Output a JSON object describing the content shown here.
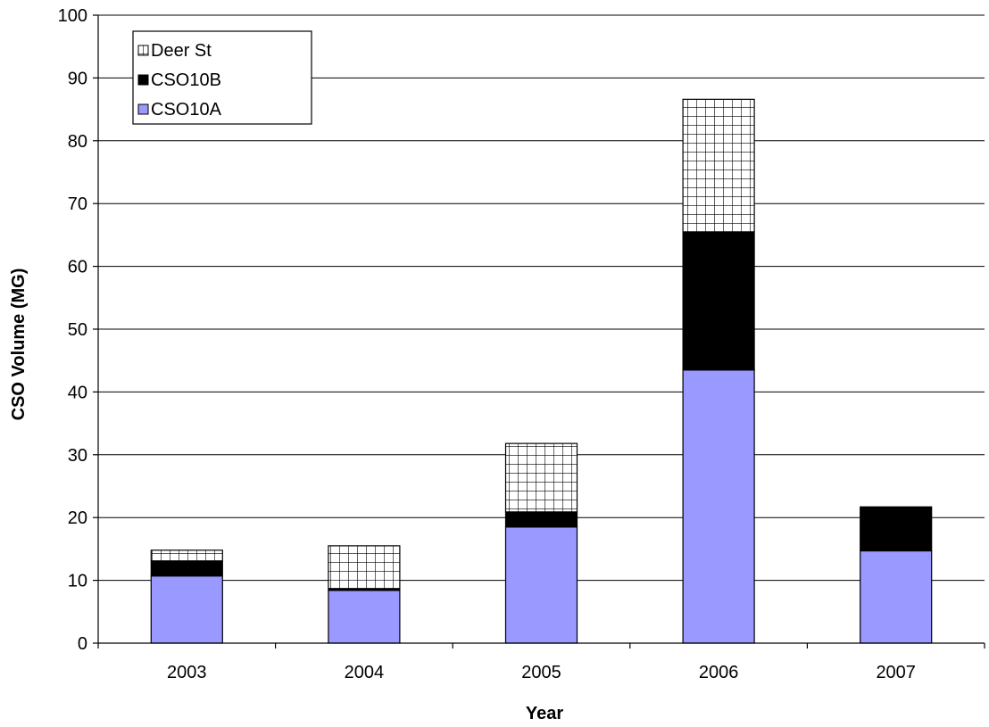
{
  "chart_data": {
    "type": "bar",
    "stacked": true,
    "categories": [
      "2003",
      "2004",
      "2005",
      "2006",
      "2007"
    ],
    "series": [
      {
        "name": "CSO10A",
        "values": [
          10.7,
          8.4,
          18.5,
          43.5,
          14.7
        ],
        "color": "#9999ff",
        "pattern": "solid"
      },
      {
        "name": "CSO10B",
        "values": [
          2.4,
          0.3,
          2.4,
          22.0,
          7.0
        ],
        "color": "#000000",
        "pattern": "solid"
      },
      {
        "name": "Deer St",
        "values": [
          1.7,
          6.8,
          10.9,
          21.1,
          0
        ],
        "color": "#ffffff",
        "pattern": "grid"
      }
    ],
    "title": "",
    "xlabel": "Year",
    "ylabel": "CSO Volume (MG)",
    "ylim": [
      0,
      100
    ],
    "yticks": [
      0,
      10,
      20,
      30,
      40,
      50,
      60,
      70,
      80,
      90,
      100
    ],
    "grid": true,
    "legend": {
      "position": "top-left",
      "entries": [
        "Deer St",
        "CSO10B",
        "CSO10A"
      ]
    }
  }
}
